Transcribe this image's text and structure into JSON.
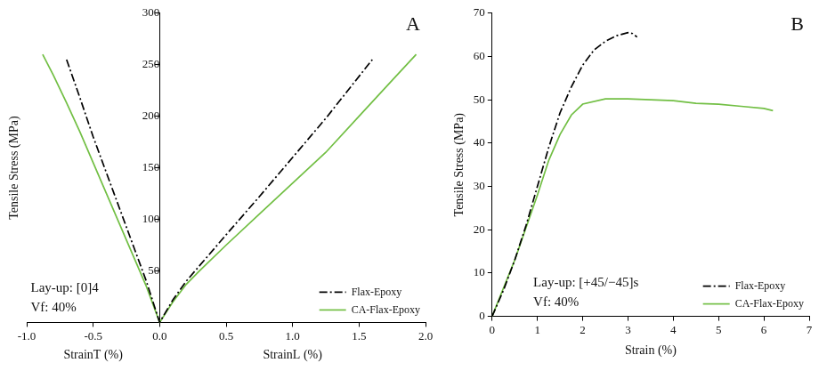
{
  "chart_data": [
    {
      "type": "line",
      "panel_label": "A",
      "xlabel": [
        "StrainT (%)",
        "StrainL (%)"
      ],
      "ylabel": "Tensile Stress (MPa)",
      "annotations": [
        "Lay-up: [0]4",
        "Vf: 40%"
      ],
      "xlim": [
        -1.0,
        2.0
      ],
      "ylim": [
        0,
        300
      ],
      "xticks": [
        {
          "value": -1.0,
          "label": "-1.0"
        },
        {
          "value": -0.5,
          "label": "-0.5"
        },
        {
          "value": 0,
          "label": "0.0"
        },
        {
          "value": 0.5,
          "label": "0.5"
        },
        {
          "value": 1.0,
          "label": "1.0"
        },
        {
          "value": 1.5,
          "label": "1.5"
        },
        {
          "value": 2.0,
          "label": "2.0"
        }
      ],
      "yticks": [
        50,
        100,
        150,
        200,
        250,
        300
      ],
      "grid": false,
      "legend": "lower right",
      "series": [
        {
          "name": "Flax-Epoxy",
          "color": "#000000",
          "line_style": "dashdot",
          "marker": "none",
          "x": [
            -0.7,
            -0.6,
            -0.5,
            -0.4,
            -0.3,
            -0.2,
            -0.1,
            -0.05,
            0,
            0.1,
            0.2,
            0.3,
            0.5,
            0.75,
            1.0,
            1.25,
            1.6
          ],
          "values": [
            255,
            218,
            180,
            145,
            110,
            75,
            40,
            20,
            0,
            22,
            40,
            55,
            85,
            122,
            160,
            198,
            255
          ]
        },
        {
          "name": "CA-Flax-Epoxy",
          "color": "#72bf44",
          "line_style": "solid",
          "marker": "none",
          "x": [
            -0.88,
            -0.8,
            -0.7,
            -0.6,
            -0.5,
            -0.4,
            -0.3,
            -0.2,
            -0.1,
            0,
            0.1,
            0.2,
            0.3,
            0.5,
            0.75,
            1.0,
            1.25,
            1.5,
            1.75,
            1.93
          ],
          "values": [
            260,
            240,
            213,
            185,
            155,
            125,
            95,
            65,
            35,
            0,
            20,
            37,
            50,
            75,
            105,
            135,
            165,
            200,
            235,
            260
          ]
        }
      ]
    },
    {
      "type": "line",
      "panel_label": "B",
      "xlabel": "Strain (%)",
      "ylabel": "Tensile Stress (MPa)",
      "annotations": [
        "Lay-up: [+45/−45]s",
        "Vf: 40%"
      ],
      "xlim": [
        0,
        7
      ],
      "ylim": [
        0,
        70
      ],
      "xticks": [
        0,
        1,
        2,
        3,
        4,
        5,
        6,
        7
      ],
      "yticks": [
        0,
        10,
        20,
        30,
        40,
        50,
        60,
        70
      ],
      "grid": false,
      "legend": "lower right",
      "series": [
        {
          "name": "Flax-Epoxy",
          "color": "#000000",
          "line_style": "dashdot",
          "marker": "none",
          "x": [
            0,
            0.25,
            0.5,
            0.75,
            1.0,
            1.25,
            1.5,
            1.75,
            2.0,
            2.25,
            2.5,
            2.75,
            3.0,
            3.1,
            3.2
          ],
          "values": [
            0,
            6,
            13,
            21,
            30,
            39,
            47,
            53,
            58,
            61.5,
            63.5,
            64.8,
            65.5,
            65.3,
            64.5
          ]
        },
        {
          "name": "CA-Flax-Epoxy",
          "color": "#72bf44",
          "line_style": "solid",
          "marker": "none",
          "x": [
            0,
            0.5,
            1.0,
            1.25,
            1.5,
            1.75,
            2.0,
            2.5,
            3.0,
            4.0,
            4.5,
            5.0,
            5.5,
            6.0,
            6.2
          ],
          "values": [
            0,
            13,
            28,
            36,
            42,
            46.5,
            49,
            50.2,
            50.2,
            49.8,
            49.2,
            49,
            48.5,
            48,
            47.5
          ]
        }
      ]
    }
  ]
}
